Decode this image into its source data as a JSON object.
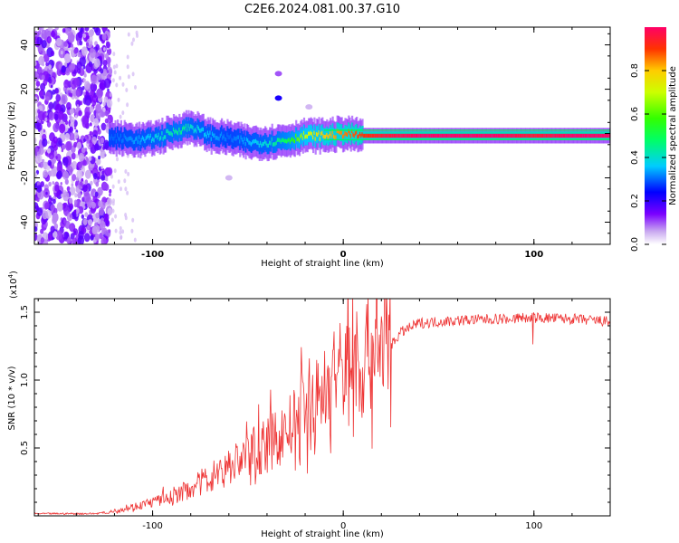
{
  "title": "C2E6.2024.081.00.37.G10",
  "chart_data": [
    {
      "type": "heatmap",
      "name": "spectrogram",
      "xlabel": "Height of straight line (km)",
      "ylabel": "Frequency (Hz)",
      "xlim": [
        -162,
        140
      ],
      "ylim": [
        -50,
        48
      ],
      "xticks": [
        {
          "value": -100,
          "label": "-100",
          "bold": true
        },
        {
          "value": 0,
          "label": "0",
          "bold": true
        },
        {
          "value": 100,
          "label": "100",
          "bold": true
        }
      ],
      "yticks": [
        {
          "value": -40,
          "label": "-40"
        },
        {
          "value": -20,
          "label": "-20"
        },
        {
          "value": 0,
          "label": "0"
        },
        {
          "value": 20,
          "label": "20"
        },
        {
          "value": 40,
          "label": "40"
        }
      ],
      "colorbar": {
        "label": "Normalized spectral amplitude",
        "range": [
          0,
          1
        ],
        "ticks": [
          {
            "value": 0.0,
            "label": "0.0"
          },
          {
            "value": 0.2,
            "label": "0.2"
          },
          {
            "value": 0.4,
            "label": "0.4"
          },
          {
            "value": 0.6,
            "label": "0.6"
          },
          {
            "value": 0.8,
            "label": "0.8"
          }
        ]
      },
      "ridge": {
        "description_points_x": [
          -120,
          -105,
          -95,
          -85,
          -80,
          -70,
          -60,
          -50,
          -40,
          -30,
          -20,
          -10,
          0,
          10,
          20,
          40,
          60,
          80,
          100,
          120,
          140
        ],
        "freq_hz": [
          -2,
          -3,
          -1,
          2,
          3,
          -1,
          -2,
          -4,
          -4,
          -3,
          -1,
          -1,
          0,
          -1,
          -1,
          -1,
          -1,
          -1,
          -1,
          -1,
          -1
        ],
        "amplitude": [
          0.3,
          0.35,
          0.4,
          0.45,
          0.4,
          0.35,
          0.3,
          0.35,
          0.4,
          0.5,
          0.7,
          0.8,
          0.85,
          0.9,
          0.95,
          1.0,
          1.0,
          1.0,
          0.95,
          1.0,
          1.0
        ]
      },
      "noise_region_x": [
        -162,
        -122
      ]
    },
    {
      "type": "line",
      "name": "snr",
      "xlabel": "Height of straight line (km)",
      "ylabel": "SNR (10 * v/v)",
      "scale_label": "(x10",
      "scale_exp": "4",
      "scale_close": ")",
      "xlim": [
        -162,
        140
      ],
      "ylim": [
        0,
        1.6
      ],
      "xticks": [
        {
          "value": -100,
          "label": "-100"
        },
        {
          "value": 0,
          "label": "0"
        },
        {
          "value": 100,
          "label": "100"
        }
      ],
      "yticks": [
        {
          "value": 0.5,
          "label": "0.5"
        },
        {
          "value": 1.0,
          "label": "1.0"
        },
        {
          "value": 1.5,
          "label": "1.5"
        }
      ],
      "color": "#ee3333",
      "series_envelope": {
        "x": [
          -162,
          -130,
          -120,
          -110,
          -100,
          -90,
          -80,
          -70,
          -60,
          -50,
          -40,
          -30,
          -20,
          -10,
          0,
          10,
          20,
          30,
          40,
          60,
          80,
          100,
          120,
          140
        ],
        "y": [
          0.01,
          0.01,
          0.03,
          0.06,
          0.09,
          0.12,
          0.18,
          0.25,
          0.32,
          0.4,
          0.45,
          0.55,
          0.65,
          0.8,
          0.95,
          1.0,
          1.15,
          1.35,
          1.42,
          1.44,
          1.45,
          1.46,
          1.45,
          1.43
        ]
      }
    }
  ]
}
